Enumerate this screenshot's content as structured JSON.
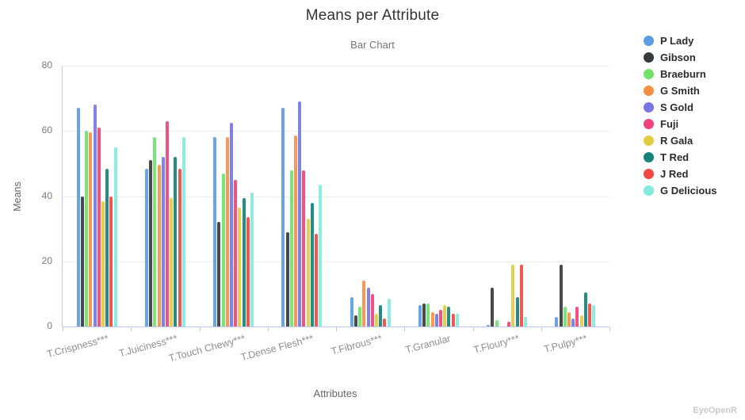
{
  "watermark": "EyeOpenR",
  "chart_data": {
    "type": "bar",
    "title": "Means per Attribute",
    "subtitle": "Bar Chart",
    "xlabel": "Attributes",
    "ylabel": "Means",
    "ylim": [
      0,
      80
    ],
    "ytick_interval": 20,
    "grid": true,
    "legend_position": "right",
    "categories": [
      "T.Crispness***",
      "T.Juiciness***",
      "T.Touch Chewy***",
      "T.Dense Flesh***",
      "T.Fibrous***",
      "T.Granular",
      "T.Floury***",
      "T.Pulpy***"
    ],
    "series": [
      {
        "name": "P Lady",
        "color": "#5B9CE4",
        "values": [
          67,
          48.5,
          58,
          67,
          9,
          6.5,
          0.4,
          3
        ]
      },
      {
        "name": "Gibson",
        "color": "#37393E",
        "values": [
          40,
          51,
          32,
          29,
          3.5,
          7,
          12,
          19
        ]
      },
      {
        "name": "Braeburn",
        "color": "#6EE26B",
        "values": [
          60,
          58,
          47,
          48,
          6,
          7,
          2,
          6
        ]
      },
      {
        "name": "G Smith",
        "color": "#F78F43",
        "values": [
          59.5,
          49.5,
          58,
          58.5,
          14,
          4.5,
          0,
          4.5
        ]
      },
      {
        "name": "S Gold",
        "color": "#7876E2",
        "values": [
          68,
          52,
          62.5,
          69,
          12,
          4,
          0,
          2.5
        ]
      },
      {
        "name": "Fuji",
        "color": "#F0437B",
        "values": [
          61,
          63,
          45,
          48,
          10,
          5,
          1.5,
          6
        ]
      },
      {
        "name": "R Gala",
        "color": "#E2CC3F",
        "values": [
          38.5,
          39.5,
          36.5,
          33,
          4,
          6.5,
          19,
          3.5
        ]
      },
      {
        "name": "T Red",
        "color": "#15837A",
        "values": [
          48.5,
          52,
          39.5,
          38,
          6.5,
          6,
          9,
          10.5
        ]
      },
      {
        "name": "J Red",
        "color": "#F04843",
        "values": [
          40,
          48.5,
          33.5,
          28.5,
          2.5,
          4,
          19,
          7
        ]
      },
      {
        "name": "G Delicious",
        "color": "#80EBDC",
        "values": [
          55,
          58,
          41,
          43.5,
          8.5,
          4,
          3,
          6.5
        ]
      }
    ]
  }
}
